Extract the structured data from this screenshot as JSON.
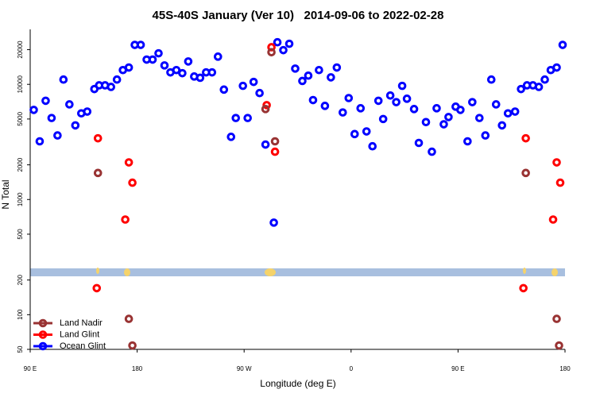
{
  "chart_data": {
    "type": "scatter",
    "title": "45S-40S January (Ver 10)   2014-09-06 to 2022-02-28",
    "x_label": "Longitude (deg E)",
    "y_label": "N Total",
    "xlim": [
      90,
      540
    ],
    "xticks": [
      {
        "value": 90,
        "label": "90 E"
      },
      180,
      {
        "value": 270,
        "label": "90 W"
      },
      {
        "value": 360,
        "label": "0"
      },
      {
        "value": 450,
        "label": "90 E"
      },
      {
        "value": 540,
        "label": "180"
      }
    ],
    "ylim": [
      50,
      30000
    ],
    "yscale": "log",
    "yticks": [
      50,
      100,
      200,
      500,
      1000,
      2000,
      5000,
      10000,
      20000
    ],
    "legend": "lower left",
    "series": [
      {
        "name": "Land Nadir",
        "color": "#993333",
        "x": [
          147,
          173,
          176,
          293,
          288,
          296,
          507,
          533,
          535
        ],
        "values": [
          1700,
          92,
          54,
          19000,
          6100,
          3200,
          1700,
          92,
          54
        ]
      },
      {
        "name": "Land Glint",
        "color": "#ff0000",
        "x": [
          147,
          170,
          173,
          176,
          146,
          293,
          289,
          296,
          507,
          530,
          533,
          536,
          505
        ],
        "values": [
          3400,
          670,
          2100,
          1400,
          170,
          21000,
          6600,
          2600,
          3400,
          670,
          2100,
          1400,
          170
        ]
      },
      {
        "name": "Ocean Glint",
        "color": "#0000ff",
        "x": [
          93,
          98,
          103,
          108,
          113,
          118,
          123,
          128,
          133,
          138,
          144,
          148,
          153,
          158,
          163,
          168,
          173,
          178,
          183,
          188,
          193,
          198,
          203,
          208,
          213,
          218,
          223,
          228,
          233,
          238,
          243,
          248,
          253,
          259,
          263,
          269,
          273,
          278,
          283,
          288,
          295,
          298,
          303,
          308,
          313,
          319,
          324,
          328,
          333,
          338,
          343,
          348,
          353,
          358,
          363,
          368,
          373,
          378,
          383,
          387,
          393,
          398,
          403,
          407,
          413,
          417,
          423,
          428,
          432,
          438,
          442,
          448,
          452,
          458,
          462,
          468,
          473,
          478,
          482,
          487,
          492,
          498,
          503,
          508,
          513,
          518,
          523,
          528,
          533,
          538
        ],
        "values": [
          6000,
          3200,
          7200,
          5100,
          3600,
          11000,
          6700,
          4400,
          5600,
          5800,
          9100,
          9800,
          9800,
          9500,
          11000,
          13300,
          14000,
          22000,
          22000,
          16400,
          16400,
          18600,
          14600,
          12700,
          13300,
          12500,
          15800,
          11700,
          11400,
          12700,
          12700,
          17400,
          9000,
          3500,
          5100,
          9700,
          5100,
          10500,
          8400,
          3000,
          630,
          23200,
          19800,
          22500,
          13700,
          10700,
          11900,
          7300,
          13300,
          6500,
          11500,
          14000,
          5700,
          7600,
          3700,
          6200,
          3900,
          2900,
          7200,
          5000,
          8000,
          7000,
          9700,
          7500,
          6100,
          3100,
          4700,
          2600,
          6200,
          4500,
          5200,
          6400,
          6000,
          3200,
          7000,
          5100,
          3600,
          11000,
          6700,
          4400,
          5600,
          5800,
          9100,
          9800,
          9800,
          9500,
          11000,
          13300,
          14000,
          22000
        ]
      }
    ]
  }
}
